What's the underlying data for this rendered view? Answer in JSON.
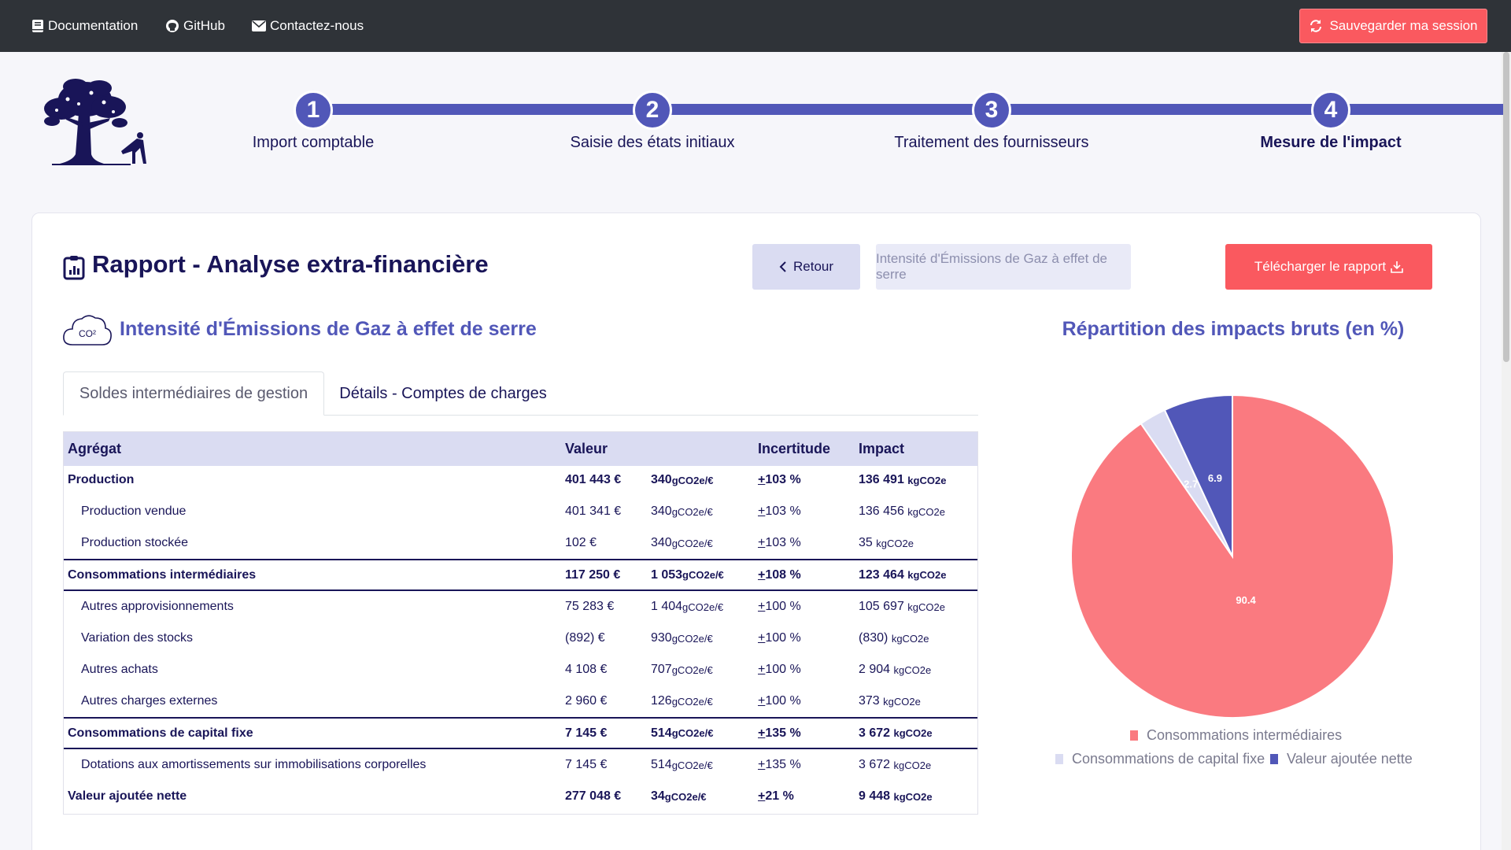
{
  "topbar": {
    "documentation": "Documentation",
    "github": "GitHub",
    "contact": "Contactez-nous",
    "save_session": "Sauvegarder ma session"
  },
  "stepper": {
    "steps": [
      {
        "number": "1",
        "label": "Import comptable"
      },
      {
        "number": "2",
        "label": "Saisie des états initiaux"
      },
      {
        "number": "3",
        "label": "Traitement des fournisseurs"
      },
      {
        "number": "4",
        "label": "Mesure de l'impact"
      }
    ],
    "active_step": 4
  },
  "report": {
    "title": "Rapport - Analyse extra-financière",
    "back_label": "Retour",
    "indicator_label": "Intensité d'Émissions de Gaz à effet de serre",
    "download_label": "Télécharger le rapport"
  },
  "section": {
    "icon_text": "CO²",
    "title": "Intensité d'Émissions de Gaz à effet de serre"
  },
  "tabs": [
    {
      "label": "Soldes intermédiaires de gestion",
      "active": true
    },
    {
      "label": "Détails - Comptes de charges",
      "active": false
    }
  ],
  "table": {
    "headers": [
      "Agrégat",
      "Valeur",
      "Incertitude",
      "Impact"
    ],
    "rows": [
      {
        "label": "Production",
        "value": "401 443 €",
        "intensity": "340",
        "intensity_unit": "gCO2e/€",
        "pm": "+",
        "uncertainty": " 103 %",
        "impact": "136 491",
        "impact_unit": "kgCO2e",
        "level": "strong",
        "indent": false
      },
      {
        "label": "Production vendue",
        "value": "401 341 €",
        "intensity": "340",
        "intensity_unit": "gCO2e/€",
        "pm": "+",
        "uncertainty": " 103 %",
        "impact": "136 456",
        "impact_unit": "kgCO2e",
        "level": "normal",
        "indent": true
      },
      {
        "label": "Production stockée",
        "value": "102 €",
        "intensity": "340",
        "intensity_unit": "gCO2e/€",
        "pm": "+",
        "uncertainty": " 103 %",
        "impact": "35",
        "impact_unit": "kgCO2e",
        "level": "normal",
        "indent": true
      },
      {
        "label": "Consommations intermédiaires",
        "value": "117 250 €",
        "intensity": "1 053",
        "intensity_unit": "gCO2e/€",
        "pm": "+",
        "uncertainty": " 108 %",
        "impact": "123 464",
        "impact_unit": "kgCO2e",
        "level": "bold",
        "indent": false
      },
      {
        "label": "Autres approvisionnements",
        "value": "75 283 €",
        "intensity": "1 404",
        "intensity_unit": "gCO2e/€",
        "pm": "+",
        "uncertainty": " 100 %",
        "impact": "105 697",
        "impact_unit": "kgCO2e",
        "level": "normal",
        "indent": true
      },
      {
        "label": "Variation des stocks",
        "value": "(892) €",
        "intensity": "930",
        "intensity_unit": "gCO2e/€",
        "pm": "+",
        "uncertainty": " 100 %",
        "impact": "(830)",
        "impact_unit": "kgCO2e",
        "level": "normal",
        "indent": true
      },
      {
        "label": "Autres achats",
        "value": "4 108 €",
        "intensity": "707",
        "intensity_unit": "gCO2e/€",
        "pm": "+",
        "uncertainty": " 100 %",
        "impact": "2 904",
        "impact_unit": "kgCO2e",
        "level": "normal",
        "indent": true
      },
      {
        "label": "Autres charges externes",
        "value": "2 960 €",
        "intensity": "126",
        "intensity_unit": "gCO2e/€",
        "pm": "+",
        "uncertainty": " 100 %",
        "impact": "373",
        "impact_unit": "kgCO2e",
        "level": "normal",
        "indent": true
      },
      {
        "label": "Consommations de capital fixe",
        "value": "7 145 €",
        "intensity": "514",
        "intensity_unit": "gCO2e/€",
        "pm": "+",
        "uncertainty": " 135 %",
        "impact": "3 672",
        "impact_unit": "kgCO2e",
        "level": "bold",
        "indent": false
      },
      {
        "label": "Dotations aux amortissements sur immobilisations corporelles",
        "value": "7 145 €",
        "intensity": "514",
        "intensity_unit": "gCO2e/€",
        "pm": "+",
        "uncertainty": " 135 %",
        "impact": "3 672",
        "impact_unit": "kgCO2e",
        "level": "normal",
        "indent": true
      },
      {
        "label": "Valeur ajoutée nette",
        "value": "277 048 €",
        "intensity": "34",
        "intensity_unit": "gCO2e/€",
        "pm": "+",
        "uncertainty": " 21 %",
        "impact": "9 448",
        "impact_unit": "kgCO2e",
        "level": "strong",
        "indent": false
      }
    ]
  },
  "chart_data": {
    "type": "pie",
    "title": "Répartition des impacts bruts (en %)",
    "categories": [
      "Consommations intermédiaires",
      "Consommations de capital fixe",
      "Valeur ajoutée nette"
    ],
    "values": [
      90.4,
      2.7,
      6.9
    ],
    "data_labels": [
      "90.4",
      "2.7",
      "6.9"
    ],
    "colors": [
      "#fa7a80",
      "#dadcf2",
      "#5157b8"
    ],
    "legend_position": "bottom"
  },
  "colors": {
    "primary": "#5157b8",
    "dark_blue": "#191558",
    "accent_red": "#fa595f",
    "topbar": "#2f3338"
  }
}
